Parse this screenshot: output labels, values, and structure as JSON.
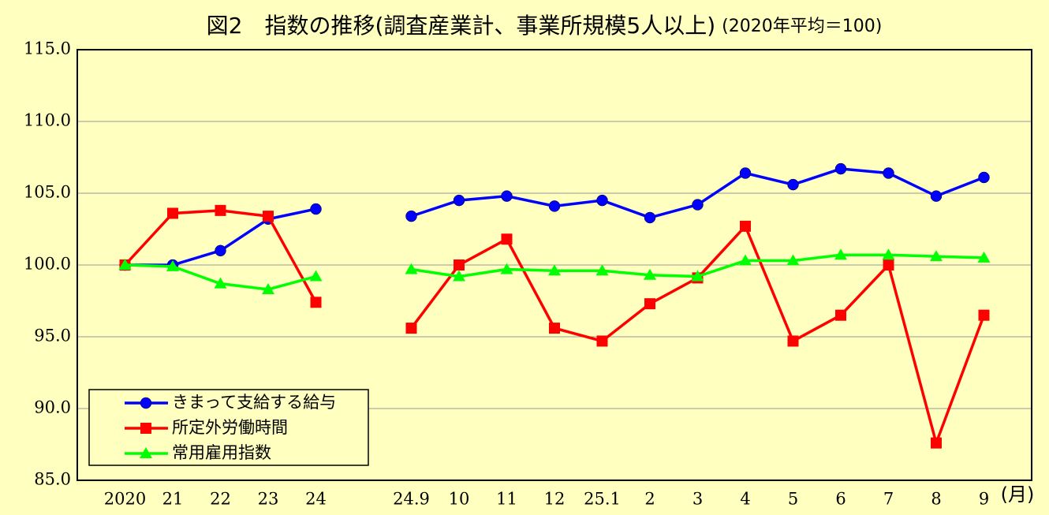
{
  "chart_data": {
    "type": "line",
    "title": "図2　指数の推移(調査産業計、事業所規模5人以上)",
    "subtitle": "(2020年平均＝100)",
    "x_label": "(月)",
    "categories": [
      "2020",
      "21",
      "22",
      "23",
      "24",
      null,
      "24.9",
      "10",
      "11",
      "12",
      "25.1",
      "2",
      "3",
      "4",
      "5",
      "6",
      "7",
      "8",
      "9"
    ],
    "series": [
      {
        "name": "きまって支給する給与",
        "color": "#0000ff",
        "marker": "circle",
        "values": [
          100.0,
          100.0,
          101.0,
          103.2,
          103.9,
          null,
          103.4,
          104.5,
          104.8,
          104.1,
          104.5,
          103.3,
          104.2,
          106.4,
          105.6,
          106.7,
          106.4,
          104.8,
          106.1
        ]
      },
      {
        "name": "所定外労働時間",
        "color": "#ff0000",
        "marker": "square",
        "values": [
          100.0,
          103.6,
          103.8,
          103.4,
          97.4,
          null,
          95.6,
          100.0,
          101.8,
          95.6,
          94.7,
          97.3,
          99.1,
          102.7,
          94.7,
          96.5,
          100.0,
          87.6,
          96.5
        ]
      },
      {
        "name": "常用雇用指数",
        "color": "#00ff00",
        "marker": "triangle",
        "values": [
          100.0,
          99.9,
          98.7,
          98.3,
          99.2,
          null,
          99.7,
          99.2,
          99.7,
          99.6,
          99.6,
          99.3,
          99.2,
          100.3,
          100.3,
          100.7,
          100.7,
          100.6,
          100.5
        ]
      }
    ],
    "ylim": [
      85,
      115
    ],
    "yticks": [
      {
        "value": 85,
        "label": "85.0"
      },
      {
        "value": 90,
        "label": "90.0"
      },
      {
        "value": 95,
        "label": "95.0"
      },
      {
        "value": 100,
        "label": "100.0"
      },
      {
        "value": 105,
        "label": "105.0"
      },
      {
        "value": 110,
        "label": "110.0"
      },
      {
        "value": 115,
        "label": "115.0"
      }
    ],
    "grid": true,
    "legend": "bottom-left"
  }
}
